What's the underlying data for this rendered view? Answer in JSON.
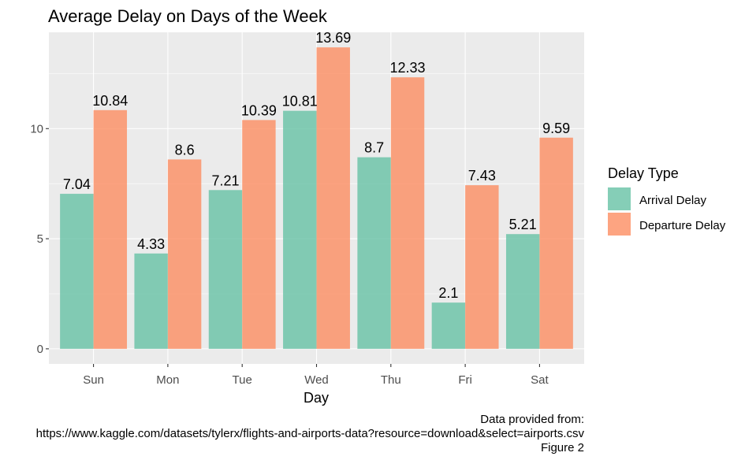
{
  "chart_data": {
    "type": "bar",
    "title": "Average Delay on Days of the Week",
    "xlabel": "Day",
    "ylabel": "",
    "categories": [
      "Sun",
      "Mon",
      "Tue",
      "Wed",
      "Thu",
      "Fri",
      "Sat"
    ],
    "series": [
      {
        "name": "Arrival Delay",
        "values": [
          7.04,
          4.33,
          7.21,
          10.81,
          8.7,
          2.1,
          5.21
        ],
        "labels": [
          "7.04",
          "4.33",
          "7.21",
          "10.81",
          "8.7",
          "2.1",
          "5.21"
        ],
        "color": "#66C2A5"
      },
      {
        "name": "Departure Delay",
        "values": [
          10.84,
          8.6,
          10.39,
          13.69,
          12.33,
          7.43,
          9.59
        ],
        "labels": [
          "10.84",
          "8.6",
          "10.39",
          "13.69",
          "12.33",
          "7.43",
          "9.59"
        ],
        "color": "#FC8D62"
      }
    ],
    "ylim": [
      -0.6845,
      14.3745
    ],
    "yticks": [
      0,
      5,
      10
    ],
    "ytick_labels": [
      "0",
      "5",
      "10"
    ],
    "grid": true,
    "legend": {
      "title": "Delay Type",
      "placement": "right"
    },
    "caption": [
      "Data provided from:",
      "https://www.kaggle.com/datasets/tylerx/flights-and-airports-data?resource=download&select=airports.csv",
      "Figure 2"
    ],
    "panel_background": "#EBEBEB",
    "grid_color": "#FFFFFF",
    "bar_opacity": 0.8
  }
}
